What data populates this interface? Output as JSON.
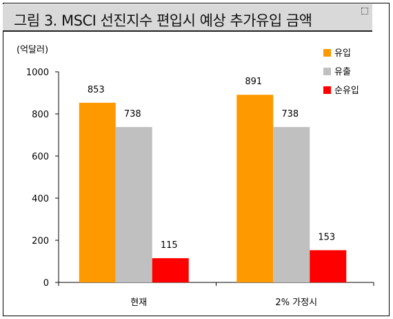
{
  "chart_data": {
    "type": "bar",
    "title": "그림 3. MSCI 선진지수 편입시 예상 추가유입 금액",
    "ylabel": "(억달러)",
    "xlabel": "",
    "categories": [
      "현재",
      "2% 가정시"
    ],
    "ylim": [
      0,
      1000
    ],
    "yticks": [
      0,
      200,
      400,
      600,
      800,
      1000
    ],
    "grid": false,
    "legend_position": "top-right",
    "series": [
      {
        "name": "유입",
        "values": [
          853,
          891
        ],
        "color": "#ff9900"
      },
      {
        "name": "유출",
        "values": [
          738,
          738
        ],
        "color": "#c0c0c0"
      },
      {
        "name": "순유입",
        "values": [
          115,
          153
        ],
        "color": "#ff0000"
      }
    ]
  }
}
